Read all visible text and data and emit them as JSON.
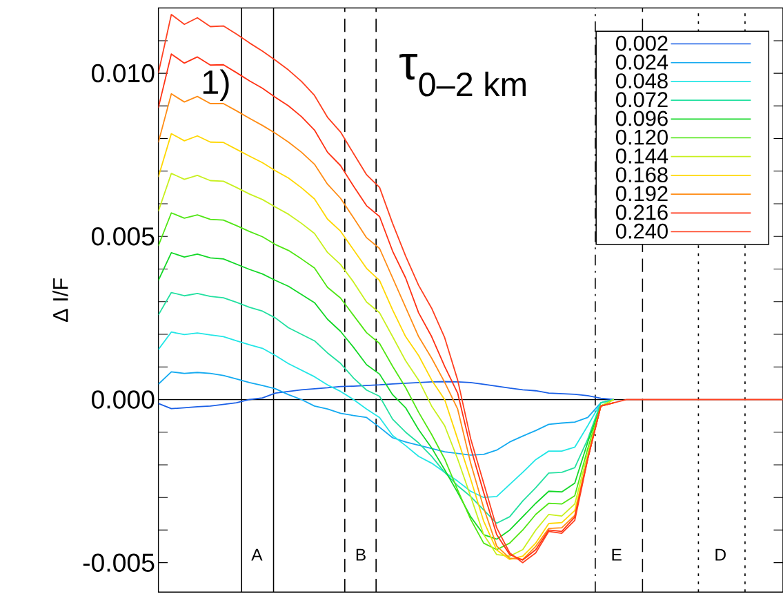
{
  "chart_data": {
    "type": "line",
    "ylabel": "Δ I/F",
    "categories": [
      null,
      null,
      null,
      null,
      null,
      null,
      null,
      null,
      null,
      null,
      null,
      null,
      null,
      null,
      null,
      null,
      null,
      null,
      null,
      null,
      null,
      null,
      null,
      null,
      null,
      null,
      null,
      null,
      null,
      null,
      null,
      null,
      null,
      null,
      null,
      null,
      null,
      null,
      null,
      null,
      null,
      null,
      null,
      null,
      null,
      null,
      null,
      null,
      null
    ],
    "tick_labels": "y",
    "ylim": [
      -0.0059,
      0.012
    ],
    "yticks": [
      {
        "value": -0.005,
        "label": "-0.005"
      },
      {
        "value": -0.004,
        "label": null
      },
      {
        "value": -0.003,
        "label": null
      },
      {
        "value": -0.002,
        "label": null
      },
      {
        "value": -0.001,
        "label": null
      },
      {
        "value": 0,
        "label": "0.000"
      },
      {
        "value": 0.001,
        "label": null
      },
      {
        "value": 0.002,
        "label": null
      },
      {
        "value": 0.003,
        "label": null
      },
      {
        "value": 0.004,
        "label": null
      },
      {
        "value": 0.005,
        "label": "0.005"
      },
      {
        "value": 0.006,
        "label": null
      },
      {
        "value": 0.007,
        "label": null
      },
      {
        "value": 0.008,
        "label": null
      },
      {
        "value": 0.009,
        "label": null
      },
      {
        "value": 0.01,
        "label": "0.010"
      },
      {
        "value": 0.011,
        "label": null
      }
    ],
    "legend": "top right",
    "annotations": [
      "1)",
      "τ$_{0–2 km}$",
      "A",
      "B",
      "E",
      "D"
    ],
    "ref_lines": [
      {
        "axis": "y",
        "value": 0
      }
    ],
    "series": [
      {
        "name": "0.002",
        "color": "#1a5fe6",
        "values": [
          -0.00012,
          -0.00028,
          -0.00025,
          -0.00022,
          -0.0002,
          -0.00015,
          -0.0001,
          0,
          5e-05,
          0.0002,
          0.00025,
          0.0003,
          0.00033,
          0.00036,
          0.0004,
          0.00041,
          0.00043,
          0.00045,
          0.00048,
          0.0005,
          0.00052,
          0.00054,
          0.00055,
          0.00054,
          0.00052,
          0.00047,
          0.00041,
          0.00035,
          0.0003,
          0.00027,
          0.0002,
          0.00018,
          0.00016,
          0.00012,
          4e-05,
          0,
          null,
          null,
          null,
          null,
          null,
          null,
          null,
          null,
          null,
          null,
          null,
          null,
          null
        ]
      },
      {
        "name": "0.024",
        "color": "#14aaf0",
        "values": [
          0.00047,
          0.00085,
          0.0008,
          0.00083,
          0.0008,
          0.00074,
          0.00063,
          0.00052,
          0.00043,
          0.00033,
          0.00015,
          0,
          -0.0002,
          -0.00029,
          -0.00042,
          -0.00049,
          -0.00055,
          -0.00085,
          -0.00117,
          -0.0013,
          -0.0014,
          -0.0015,
          -0.0016,
          -0.00165,
          -0.0017,
          -0.00168,
          -0.00155,
          -0.0013,
          -0.00112,
          -0.00095,
          -0.00076,
          -0.00072,
          -0.00069,
          -0.00055,
          -0.0001,
          0,
          null,
          null,
          null,
          null,
          null,
          null,
          null,
          null,
          null,
          null,
          null,
          null,
          null
        ]
      },
      {
        "name": "0.048",
        "color": "#22e6e6",
        "values": [
          0.00153,
          0.00207,
          0.00199,
          0.00204,
          0.00198,
          0.00193,
          0.0018,
          0.00168,
          0.00157,
          0.00135,
          0.0011,
          0.0009,
          0.0007,
          0.00045,
          0.00025,
          0,
          -0.00029,
          -0.00055,
          -0.0011,
          -0.00141,
          -0.00174,
          -0.00195,
          -0.00223,
          -0.0025,
          -0.00281,
          -0.003,
          -0.00297,
          -0.0026,
          -0.00223,
          -0.00184,
          -0.00158,
          -0.00158,
          -0.00146,
          -0.0008,
          -0.0001,
          0,
          null,
          null,
          null,
          null,
          null,
          null,
          null,
          null,
          null,
          null,
          null,
          null,
          null
        ]
      },
      {
        "name": "0.072",
        "color": "#22e0a0",
        "values": [
          0.00259,
          0.00328,
          0.00318,
          0.00325,
          0.00316,
          0.00312,
          0.00298,
          0.00283,
          0.00271,
          0.0025,
          0.0022,
          0.002,
          0.0018,
          0.00143,
          0.00111,
          0.00066,
          0.00029,
          0.0001,
          -0.0006,
          -0.001,
          -0.00133,
          -0.00174,
          -0.00223,
          -0.00264,
          -0.00297,
          -0.00338,
          -0.00379,
          -0.00359,
          -0.00311,
          -0.0027,
          -0.00225,
          -0.00223,
          -0.00209,
          -0.00121,
          -0.0001,
          0,
          null,
          null,
          null,
          null,
          null,
          null,
          null,
          null,
          null,
          null,
          null,
          null,
          null
        ]
      },
      {
        "name": "0.096",
        "color": "#14d828",
        "values": [
          0.00365,
          0.0045,
          0.00437,
          0.00446,
          0.00434,
          0.00431,
          0.00415,
          0.00399,
          0.00385,
          0.00365,
          0.00347,
          0.00322,
          0.00297,
          0.00246,
          0.00209,
          0.0016,
          0.00107,
          0.00078,
          0.00015,
          -0.00025,
          -0.00092,
          -0.00148,
          -0.00215,
          -0.00285,
          -0.00359,
          -0.00414,
          -0.00428,
          -0.004,
          -0.00359,
          -0.00318,
          -0.00281,
          -0.00283,
          -0.00256,
          -0.0013,
          -0.0002,
          0,
          null,
          null,
          null,
          null,
          null,
          null,
          null,
          null,
          null,
          null,
          null,
          null,
          null
        ]
      },
      {
        "name": "0.120",
        "color": "#50e614",
        "values": [
          0.00471,
          0.00572,
          0.00556,
          0.00566,
          0.00552,
          0.0055,
          0.00533,
          0.00515,
          0.00499,
          0.00475,
          0.00457,
          0.00431,
          0.00403,
          0.00344,
          0.00311,
          0.00258,
          0.00205,
          0.00172,
          0.00102,
          0.00037,
          -0.00039,
          -0.00107,
          -0.00182,
          -0.00277,
          -0.00367,
          -0.0044,
          -0.0046,
          -0.0044,
          -0.004,
          -0.00352,
          -0.00318,
          -0.0032,
          -0.00295,
          -0.0015,
          -0.0002,
          0,
          null,
          null,
          null,
          null,
          null,
          null,
          null,
          null,
          null,
          null,
          null,
          null,
          null
        ]
      },
      {
        "name": "0.144",
        "color": "#c8f01e",
        "values": [
          0.00577,
          0.00693,
          0.00675,
          0.00687,
          0.00671,
          0.00669,
          0.0065,
          0.0063,
          0.00613,
          0.0059,
          0.00568,
          0.0054,
          0.00509,
          0.00451,
          0.00414,
          0.0036,
          0.00299,
          0.00266,
          0.00193,
          0.00119,
          0.0006,
          -0.0002,
          -0.0008,
          -0.00182,
          -0.00297,
          -0.00414,
          -0.00475,
          -0.0048,
          -0.0046,
          -0.004,
          -0.00352,
          -0.00357,
          -0.0032,
          -0.00165,
          -0.0002,
          0,
          null,
          null,
          null,
          null,
          null,
          null,
          null,
          null,
          null,
          null,
          null,
          null,
          null
        ]
      },
      {
        "name": "0.168",
        "color": "#ffd700",
        "values": [
          0.00682,
          0.00815,
          0.00793,
          0.00808,
          0.00789,
          0.00788,
          0.00767,
          0.00746,
          0.00726,
          0.00701,
          0.00679,
          0.00649,
          0.00615,
          0.00553,
          0.00516,
          0.00459,
          0.00402,
          0.00365,
          0.00275,
          0.00193,
          0.00135,
          0.0006,
          0,
          -0.00121,
          -0.00244,
          -0.00373,
          -0.00461,
          -0.0049,
          -0.0048,
          -0.0044,
          -0.0038,
          -0.00377,
          -0.0034,
          -0.0018,
          -0.0002,
          -0.0001,
          null,
          null,
          null,
          null,
          null,
          null,
          null,
          null,
          null,
          null,
          null,
          null,
          null
        ]
      },
      {
        "name": "0.192",
        "color": "#ff8c14",
        "values": [
          0.00788,
          0.00937,
          0.00912,
          0.00929,
          0.00907,
          0.00907,
          0.00885,
          0.00862,
          0.0084,
          0.00816,
          0.00789,
          0.00758,
          0.00721,
          0.0066,
          0.00617,
          0.00557,
          0.00496,
          0.00463,
          0.00373,
          0.00283,
          0.00193,
          0.00127,
          0.00053,
          -0.00029,
          -0.00195,
          -0.00332,
          -0.00449,
          -0.00486,
          -0.0049,
          -0.0045,
          -0.00395,
          -0.00393,
          -0.00355,
          -0.0018,
          -0.0002,
          -0.0001,
          null,
          null,
          null,
          null,
          null,
          null,
          null,
          null,
          null,
          null,
          null,
          null,
          null
        ]
      },
      {
        "name": "0.216",
        "color": "#ff3214",
        "values": [
          0.00894,
          0.01059,
          0.01031,
          0.0105,
          0.01025,
          0.01026,
          0.01002,
          0.00977,
          0.00954,
          0.00926,
          0.009,
          0.00867,
          0.00826,
          0.00758,
          0.00717,
          0.00654,
          0.00594,
          0.00561,
          0.00455,
          0.00373,
          0.00266,
          0.00193,
          0.00102,
          0.0002,
          -0.00148,
          -0.00285,
          -0.00414,
          -0.00475,
          -0.00492,
          -0.0046,
          -0.004,
          -0.00404,
          -0.0036,
          -0.0018,
          -0.0002,
          -0.0001,
          null,
          null,
          null,
          null,
          null,
          null,
          null,
          null,
          null,
          null,
          null,
          null,
          null
        ]
      },
      {
        "name": "0.240",
        "color": "#ff4020",
        "values": [
          0.01,
          0.0118,
          0.0115,
          0.0117,
          0.01143,
          0.01145,
          0.0112,
          0.01093,
          0.01068,
          0.0104,
          0.0101,
          0.00975,
          0.00932,
          0.00865,
          0.0082,
          0.00754,
          0.00689,
          0.0065,
          0.0054,
          0.0044,
          0.0035,
          0.0028,
          0.0019,
          0.0006,
          -0.0012,
          -0.00256,
          -0.00393,
          -0.0047,
          -0.005,
          -0.0047,
          -0.00404,
          -0.0041,
          -0.0037,
          -0.00182,
          -0.0002,
          -0.0001,
          0,
          0,
          0,
          0,
          0,
          0,
          0,
          0,
          0,
          0,
          0,
          0,
          0
        ]
      }
    ]
  }
}
